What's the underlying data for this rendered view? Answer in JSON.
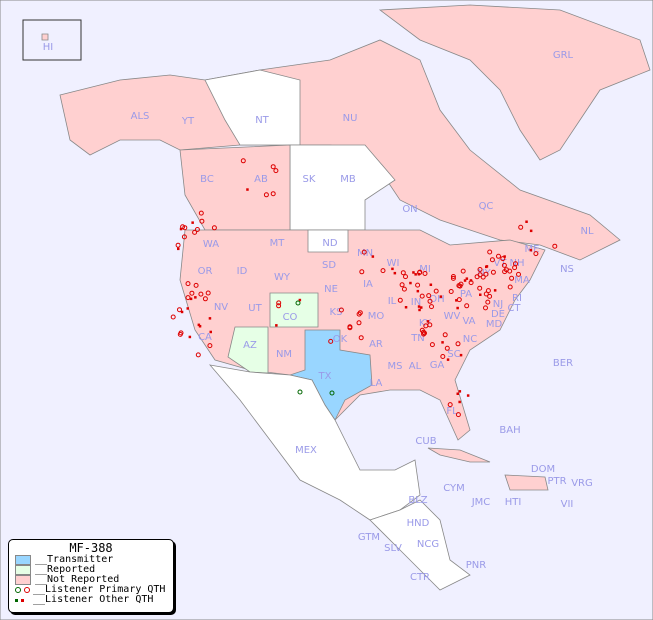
{
  "legend": {
    "title": "MF-388",
    "items": [
      {
        "label": "__Transmitter",
        "color": "#99d6ff"
      },
      {
        "label": "__Reported",
        "color": "#e6ffe6"
      },
      {
        "label": "__Not Reported",
        "color": "#ffd0d0"
      },
      {
        "label": "__Listener Primary QTH",
        "colors": [
          "#006600",
          "#dd0000"
        ]
      },
      {
        "label": "__Listener Other QTH",
        "colors": [
          "#006600",
          "#dd0000"
        ]
      }
    ]
  },
  "colors": {
    "ocean": "#f0f0ff",
    "not_reported": "#ffd0d0",
    "reported": "#e6ffe6",
    "transmitter": "#99d6ff",
    "unlisted": "#ffffff",
    "label": "#9a9ae8",
    "listener": "#dd0000"
  },
  "transmitter_region": "TX",
  "reported_regions": [
    "AZ",
    "CO"
  ],
  "region_labels": [
    "HI",
    "ALS",
    "YT",
    "NT",
    "NU",
    "GRL",
    "BC",
    "AB",
    "SK",
    "MB",
    "ON",
    "QC",
    "NL",
    "NS",
    "WA",
    "MT",
    "ND",
    "MN",
    "WI",
    "MI",
    "OR",
    "ID",
    "WY",
    "SD",
    "NE",
    "IA",
    "IL",
    "IN",
    "OH",
    "PA",
    "NY",
    "VT",
    "NH",
    "ME",
    "MA",
    "CT",
    "RI",
    "NJ",
    "DE",
    "MD",
    "NV",
    "UT",
    "CO",
    "KS",
    "MO",
    "KY",
    "WV",
    "VA",
    "CA",
    "AZ",
    "NM",
    "OK",
    "AR",
    "TN",
    "NC",
    "SC",
    "TX",
    "LA",
    "MS",
    "AL",
    "GA",
    "FL",
    "BER",
    "MEX",
    "CUB",
    "BAH",
    "DOM",
    "PTR",
    "VRG",
    "CYM",
    "JMC",
    "HTI",
    "VII",
    "BLZ",
    "HND",
    "GTM",
    "SLV",
    "NCG",
    "CTR",
    "PNR"
  ]
}
